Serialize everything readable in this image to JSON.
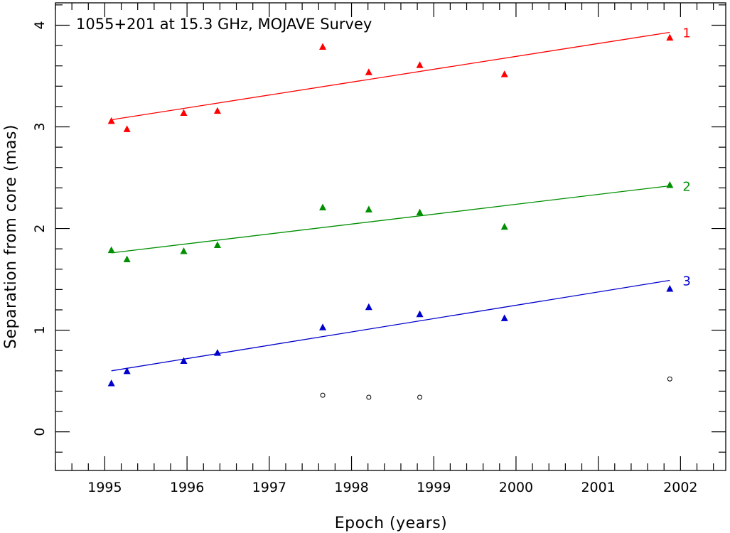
{
  "chart_data": {
    "type": "scatter",
    "title": "1055+201 at 15.3 GHz, MOJAVE Survey",
    "xlabel": "Epoch (years)",
    "ylabel": "Separation from core (mas)",
    "xlim": [
      1994.4,
      2002.55
    ],
    "ylim": [
      -0.38,
      4.22
    ],
    "xticks": [
      1995,
      1996,
      1997,
      1998,
      1999,
      2000,
      2001,
      2002
    ],
    "yticks": [
      0,
      1,
      2,
      3,
      4
    ],
    "grid": false,
    "series": [
      {
        "name": "1",
        "color": "#ff0000",
        "marker": "triangle",
        "x": [
          1995.08,
          1995.27,
          1995.96,
          1996.37,
          1997.65,
          1998.21,
          1998.83,
          1999.86,
          2001.87
        ],
        "y": [
          3.06,
          2.98,
          3.14,
          3.16,
          3.79,
          3.54,
          3.61,
          3.52,
          3.88
        ],
        "fit": {
          "x": [
            1995.08,
            2001.87
          ],
          "y": [
            3.07,
            3.93
          ]
        }
      },
      {
        "name": "2",
        "color": "#008f00",
        "marker": "triangle",
        "x": [
          1995.08,
          1995.27,
          1995.96,
          1996.37,
          1997.65,
          1998.21,
          1998.83,
          1999.86,
          2001.87
        ],
        "y": [
          1.79,
          1.7,
          1.78,
          1.84,
          2.21,
          2.19,
          2.16,
          2.02,
          2.43
        ],
        "fit": {
          "x": [
            1995.08,
            2001.87
          ],
          "y": [
            1.76,
            2.42
          ]
        }
      },
      {
        "name": "3",
        "color": "#0000cc",
        "marker": "triangle",
        "x": [
          1995.08,
          1995.27,
          1995.96,
          1996.37,
          1997.65,
          1998.21,
          1998.83,
          1999.86,
          2001.87
        ],
        "y": [
          0.48,
          0.6,
          0.7,
          0.78,
          1.03,
          1.23,
          1.16,
          1.12,
          1.41
        ],
        "fit": {
          "x": [
            1995.08,
            2001.87
          ],
          "y": [
            0.6,
            1.49
          ]
        }
      },
      {
        "color": "#000000",
        "marker": "circle-open",
        "x": [
          1997.65,
          1998.21,
          1998.83,
          2001.87
        ],
        "y": [
          0.36,
          0.34,
          0.34,
          0.52
        ]
      }
    ]
  }
}
